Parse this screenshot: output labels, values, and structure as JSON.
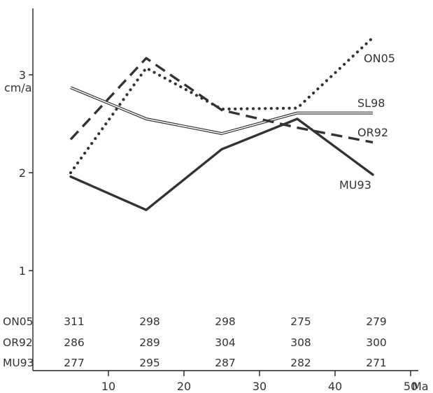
{
  "chart_data": {
    "type": "line",
    "ylabel": "cm/a",
    "x_unit": "Ma",
    "x": [
      5,
      15,
      25,
      35,
      45
    ],
    "xlim": [
      0,
      50
    ],
    "ylim": [
      0,
      3.7
    ],
    "x_ticks": [
      10,
      20,
      30,
      40,
      50
    ],
    "x_tick_labels": [
      "10",
      "20",
      "30",
      "40",
      "50"
    ],
    "y_ticks": [
      1,
      2,
      3
    ],
    "y_tick_labels": [
      "1",
      "2",
      "3"
    ],
    "grid": false,
    "series": [
      {
        "name": "ON05",
        "style": "dotted",
        "values": [
          2.0,
          3.07,
          2.65,
          2.66,
          3.38
        ]
      },
      {
        "name": "SL98",
        "style": "double",
        "values": [
          2.87,
          2.55,
          2.4,
          2.61,
          2.61
        ]
      },
      {
        "name": "OR92",
        "style": "dashed",
        "values": [
          2.34,
          3.17,
          2.64,
          2.46,
          2.31
        ]
      },
      {
        "name": "MU93",
        "style": "solid",
        "values": [
          1.96,
          1.62,
          2.24,
          2.55,
          1.98
        ]
      }
    ],
    "table": {
      "rows": [
        {
          "name": "ON05",
          "values": [
            "311",
            "298",
            "298",
            "275",
            "279"
          ]
        },
        {
          "name": "OR92",
          "values": [
            "286",
            "289",
            "304",
            "308",
            "300"
          ]
        },
        {
          "name": "MU93",
          "values": [
            "277",
            "295",
            "287",
            "282",
            "271"
          ]
        }
      ]
    }
  },
  "colors": {
    "line": "#333333",
    "axis": "#222222"
  }
}
